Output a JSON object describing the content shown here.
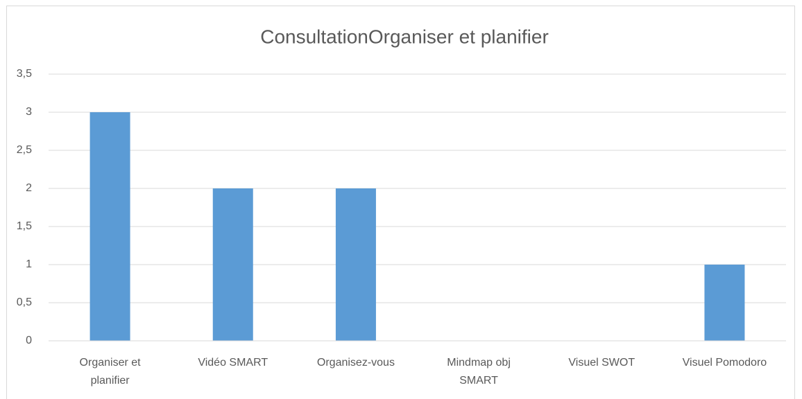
{
  "chart_data": {
    "type": "bar",
    "title": "ConsultationOrganiser et planifier",
    "categories": [
      "Organiser et planifier",
      "Vidéo SMART",
      "Organisez-vous",
      "Mindmap obj SMART",
      "Visuel SWOT",
      "Visuel Pomodoro"
    ],
    "values": [
      3,
      2,
      2,
      0,
      0,
      1
    ],
    "color": "#5b9bd5",
    "ylim": [
      0,
      3.5
    ],
    "yticks": [
      0,
      {
        "value": 0.5,
        "label": "0,5"
      },
      1,
      {
        "value": 1.5,
        "label": "1,5"
      },
      2,
      {
        "value": 2.5,
        "label": "2,5"
      },
      3,
      {
        "value": 3.5,
        "label": "3,5"
      }
    ],
    "grid": true
  }
}
